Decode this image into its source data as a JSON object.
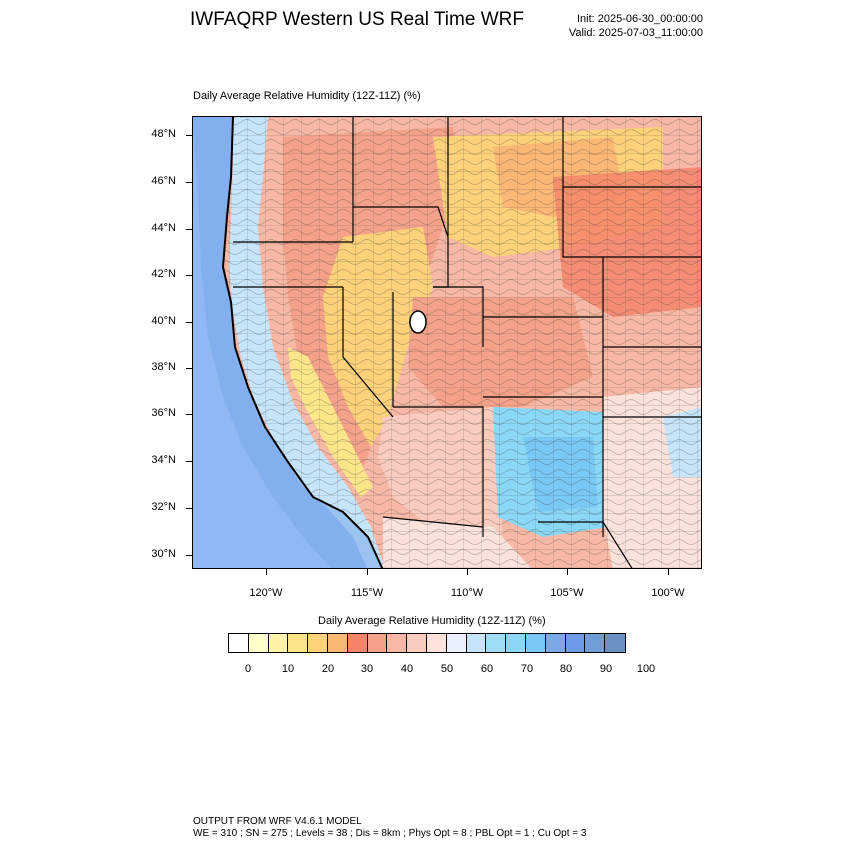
{
  "header": {
    "title": "IWFAQRP Western US Real Time WRF",
    "init": "Init: 2025-06-30_00:00:00",
    "valid": "Valid: 2025-07-03_11:00:00"
  },
  "map": {
    "title": "Daily Average Relative Humidity (12Z-11Z)   (%)",
    "lat_labels": [
      "48°N",
      "46°N",
      "44°N",
      "42°N",
      "40°N",
      "38°N",
      "36°N",
      "34°N",
      "32°N",
      "30°N"
    ],
    "lon_labels": [
      "120°W",
      "115°W",
      "110°W",
      "105°W",
      "100°W"
    ],
    "colors": {
      "ocean": "#8fb8f5",
      "dry": "#fbb874",
      "moderate": "#f4a38a",
      "moist": "#fbd8d0",
      "wet": "#8ad8f5",
      "very_wet": "#7aa8e8"
    }
  },
  "colorbar": {
    "title": "Daily Average Relative Humidity (12Z-11Z)  (%)",
    "labels": [
      "0",
      "10",
      "20",
      "30",
      "40",
      "50",
      "60",
      "70",
      "80",
      "90",
      "100"
    ],
    "colors": [
      "#ffffff",
      "#ffffc8",
      "#fff3a8",
      "#fde68a",
      "#fdd27a",
      "#fbb874",
      "#f4856b",
      "#f4a38a",
      "#f7b9a6",
      "#f9ccbf",
      "#fbe2db",
      "#ebf0ff",
      "#c6e5fb",
      "#9fdcf8",
      "#8ad8f5",
      "#7ac8f5",
      "#7aa8e8",
      "#6e9be8",
      "#6f9fd6",
      "#6a93c4"
    ]
  },
  "footer": {
    "line1": "OUTPUT FROM WRF V4.6.1 MODEL",
    "line2": "WE = 310 ; SN = 275 ; Levels = 38 ; Dis = 8km ; Phys Opt = 8 ; PBL Opt = 1 ; Cu Opt = 3"
  }
}
